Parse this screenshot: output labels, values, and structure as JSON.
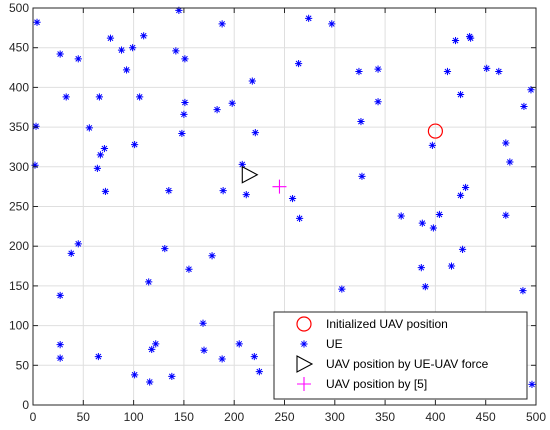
{
  "chart_data": {
    "type": "scatter",
    "title": "",
    "xlabel": "",
    "ylabel": "",
    "xlim": [
      0,
      500
    ],
    "ylim": [
      0,
      500
    ],
    "xticks": [
      0,
      50,
      100,
      150,
      200,
      250,
      300,
      350,
      400,
      450,
      500
    ],
    "yticks": [
      0,
      50,
      100,
      150,
      200,
      250,
      300,
      350,
      400,
      450,
      500
    ],
    "grid": true,
    "legend_position": "bottom-right",
    "series": [
      {
        "name": "Initialized UAV position",
        "marker": "circle",
        "color": "#ff0000",
        "points": [
          [
            400,
            345
          ]
        ]
      },
      {
        "name": "UE",
        "marker": "asterisk",
        "color": "#0000ff",
        "points": [
          [
            4,
            482
          ],
          [
            27,
            442
          ],
          [
            45,
            436
          ],
          [
            33,
            388
          ],
          [
            3,
            351
          ],
          [
            2,
            302
          ],
          [
            56,
            349
          ],
          [
            66,
            388
          ],
          [
            77,
            462
          ],
          [
            88,
            447
          ],
          [
            99,
            450
          ],
          [
            110,
            465
          ],
          [
            93,
            422
          ],
          [
            106,
            388
          ],
          [
            67,
            315
          ],
          [
            71,
            323
          ],
          [
            64,
            298
          ],
          [
            72,
            269
          ],
          [
            101,
            328
          ],
          [
            145,
            497
          ],
          [
            142,
            446
          ],
          [
            151,
            436
          ],
          [
            151,
            381
          ],
          [
            150,
            366
          ],
          [
            148,
            342
          ],
          [
            135,
            270
          ],
          [
            38,
            191
          ],
          [
            45,
            203
          ],
          [
            27,
            138
          ],
          [
            27,
            76
          ],
          [
            27,
            59
          ],
          [
            65,
            61
          ],
          [
            101,
            38
          ],
          [
            116,
            29
          ],
          [
            138,
            36
          ],
          [
            118,
            70
          ],
          [
            122,
            77
          ],
          [
            131,
            197
          ],
          [
            115,
            155
          ],
          [
            155,
            171
          ],
          [
            178,
            188
          ],
          [
            169,
            103
          ],
          [
            170,
            69
          ],
          [
            183,
            372
          ],
          [
            188,
            480
          ],
          [
            198,
            380
          ],
          [
            218,
            408
          ],
          [
            221,
            343
          ],
          [
            189,
            270
          ],
          [
            212,
            265
          ],
          [
            208,
            303
          ],
          [
            205,
            77
          ],
          [
            220,
            61
          ],
          [
            188,
            58
          ],
          [
            225,
            42
          ],
          [
            274,
            487
          ],
          [
            264,
            430
          ],
          [
            297,
            480
          ],
          [
            324,
            420
          ],
          [
            326,
            357
          ],
          [
            327,
            288
          ],
          [
            343,
            423
          ],
          [
            343,
            382
          ],
          [
            258,
            260
          ],
          [
            265,
            235
          ],
          [
            307,
            146
          ],
          [
            366,
            238
          ],
          [
            387,
            229
          ],
          [
            398,
            223
          ],
          [
            386,
            173
          ],
          [
            390,
            149
          ],
          [
            397,
            327
          ],
          [
            404,
            240
          ],
          [
            400,
            113
          ],
          [
            416,
            175
          ],
          [
            412,
            420
          ],
          [
            420,
            459
          ],
          [
            425,
            391
          ],
          [
            434,
            464
          ],
          [
            435,
            462
          ],
          [
            425,
            264
          ],
          [
            430,
            274
          ],
          [
            427,
            196
          ],
          [
            451,
            424
          ],
          [
            463,
            420
          ],
          [
            488,
            376
          ],
          [
            495,
            397
          ],
          [
            470,
            330
          ],
          [
            474,
            306
          ],
          [
            470,
            239
          ],
          [
            487,
            144
          ],
          [
            496,
            26
          ]
        ]
      },
      {
        "name": "UAV position by UE-UAV force",
        "marker": "triangle-right",
        "color": "#000000",
        "points": [
          [
            215,
            290
          ]
        ]
      },
      {
        "name": "UAV position by [5]",
        "marker": "plus",
        "color": "#ff00ff",
        "points": [
          [
            245,
            275
          ]
        ]
      }
    ]
  }
}
